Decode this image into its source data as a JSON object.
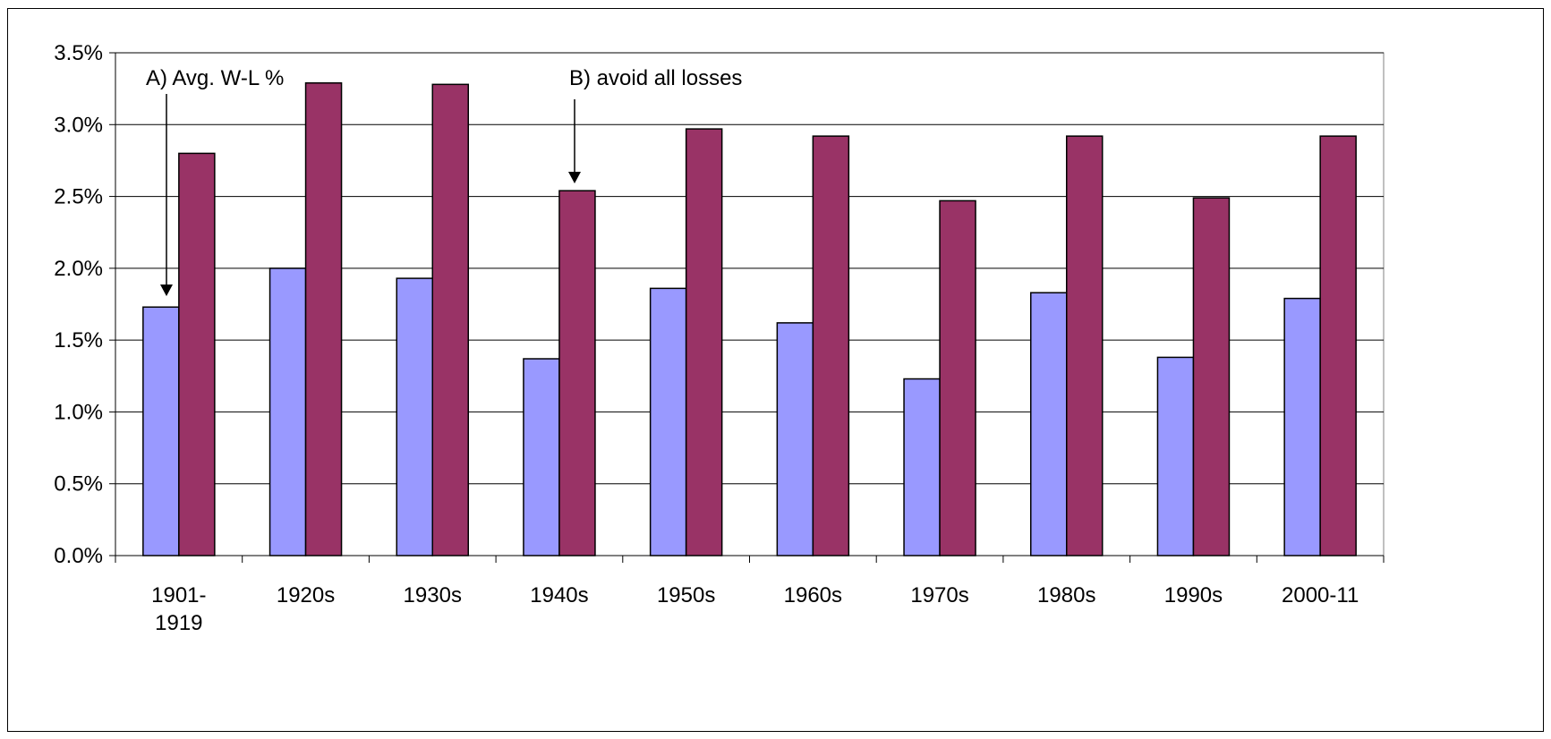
{
  "chart_data": {
    "type": "bar",
    "categories": [
      [
        "1901-",
        "1919"
      ],
      [
        "1920s"
      ],
      [
        "1930s"
      ],
      [
        "1940s"
      ],
      [
        "1950s"
      ],
      [
        "1960s"
      ],
      [
        "1970s"
      ],
      [
        "1980s"
      ],
      [
        "1990s"
      ],
      [
        "2000-11"
      ]
    ],
    "series": [
      {
        "values": [
          1.73,
          2.0,
          1.93,
          1.37,
          1.86,
          1.62,
          1.23,
          1.83,
          1.38,
          1.79
        ],
        "color": "#9999ff"
      },
      {
        "values": [
          2.8,
          3.29,
          3.28,
          2.54,
          2.97,
          2.92,
          2.47,
          2.92,
          2.49,
          2.92
        ],
        "color": "#993366"
      }
    ],
    "ylim": [
      0,
      3.5
    ],
    "yticks": [
      "0.0%",
      "0.5%",
      "1.0%",
      "1.5%",
      "2.0%",
      "2.5%",
      "3.0%",
      "3.5%"
    ],
    "grid": true,
    "legend": "none",
    "annotations": [
      {
        "text": "A) Avg. W-L %",
        "series": 0,
        "category": 0
      },
      {
        "text": "B) avoid all losses",
        "series": 1,
        "category": 3
      }
    ],
    "plot_background": "#ffffff",
    "gridline_color": "#000000"
  }
}
